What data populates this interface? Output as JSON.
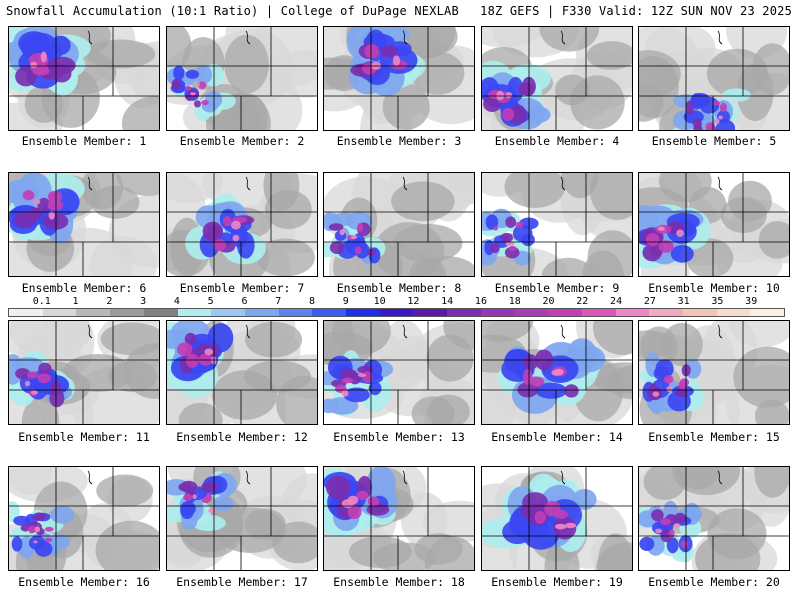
{
  "header": {
    "title": "Snowfall Accumulation (10:1 Ratio) | College of DuPage NEXLAB",
    "run_info": "18Z GEFS | F330 Valid: 12Z SUN NOV 23 2025"
  },
  "colors": {
    "light_gray": "#d8d8d8",
    "gray": "#a8a8a8",
    "dark_gray": "#808080",
    "cyan": "#aeeeee",
    "light_blue": "#7fa6f0",
    "blue": "#3a46f2",
    "purple": "#7a2fb0",
    "magenta": "#c03fb6",
    "pink": "#ec85c8",
    "peach": "#f3c3b5",
    "state_lines": "#000000"
  },
  "legend": {
    "labels": [
      "0.1",
      "1",
      "2",
      "3",
      "4",
      "5",
      "6",
      "7",
      "8",
      "9",
      "10",
      "12",
      "14",
      "16",
      "18",
      "20",
      "22",
      "24",
      "27",
      "31",
      "35",
      "39"
    ],
    "colors": [
      "#f0f0f0",
      "#d8d8d8",
      "#b8b8b8",
      "#9c9c9c",
      "#808080",
      "#aeeeee",
      "#9cc6f4",
      "#7fa6f0",
      "#5b82ee",
      "#3a5cf0",
      "#1f2fe8",
      "#3a18c8",
      "#5a1aa8",
      "#7a2fb0",
      "#9437b6",
      "#a83cb4",
      "#c03fb6",
      "#d858b8",
      "#ec85c8",
      "#f2a9c2",
      "#f3c3b5",
      "#f6dccd",
      "#fbeee2"
    ]
  },
  "members": [
    {
      "label": "Ensemble Member: 1",
      "intensity": 0.95,
      "focus": "northwest"
    },
    {
      "label": "Ensemble Member: 2",
      "intensity": 0.45,
      "focus": "west"
    },
    {
      "label": "Ensemble Member: 3",
      "intensity": 0.9,
      "focus": "north"
    },
    {
      "label": "Ensemble Member: 4",
      "intensity": 0.8,
      "focus": "southwest"
    },
    {
      "label": "Ensemble Member: 5",
      "intensity": 0.55,
      "focus": "south"
    },
    {
      "label": "Ensemble Member: 6",
      "intensity": 0.9,
      "focus": "northwest"
    },
    {
      "label": "Ensemble Member: 7",
      "intensity": 0.75,
      "focus": "center"
    },
    {
      "label": "Ensemble Member: 8",
      "intensity": 0.55,
      "focus": "west"
    },
    {
      "label": "Ensemble Member: 9",
      "intensity": 0.5,
      "focus": "west"
    },
    {
      "label": "Ensemble Member: 10",
      "intensity": 0.8,
      "focus": "west"
    },
    {
      "label": "Ensemble Member: 11",
      "intensity": 0.7,
      "focus": "west"
    },
    {
      "label": "Ensemble Member: 12",
      "intensity": 0.85,
      "focus": "northwest"
    },
    {
      "label": "Ensemble Member: 13",
      "intensity": 0.65,
      "focus": "west"
    },
    {
      "label": "Ensemble Member: 14",
      "intensity": 0.9,
      "focus": "diagonal"
    },
    {
      "label": "Ensemble Member: 15",
      "intensity": 0.6,
      "focus": "west"
    },
    {
      "label": "Ensemble Member: 16",
      "intensity": 0.5,
      "focus": "west"
    },
    {
      "label": "Ensemble Member: 17",
      "intensity": 0.6,
      "focus": "northwest"
    },
    {
      "label": "Ensemble Member: 18",
      "intensity": 0.9,
      "focus": "northwest"
    },
    {
      "label": "Ensemble Member: 19",
      "intensity": 0.95,
      "focus": "broad"
    },
    {
      "label": "Ensemble Member: 20",
      "intensity": 0.55,
      "focus": "west"
    }
  ]
}
